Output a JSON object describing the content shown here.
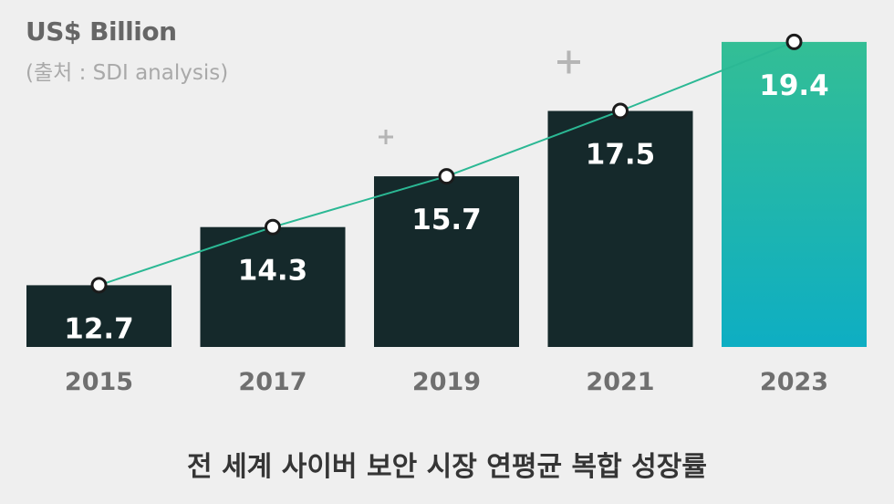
{
  "chart_data": {
    "type": "bar",
    "unit_label": "US$ Billion",
    "source": "(출처 : SDI analysis)",
    "caption": "전 세계 사이버 보안 시장 연평균 복합 성장률",
    "categories": [
      "2015",
      "2017",
      "2019",
      "2021",
      "2023"
    ],
    "values": [
      12.7,
      14.3,
      15.7,
      17.5,
      19.4
    ],
    "value_labels": [
      "12.7",
      "14.3",
      "15.7",
      "17.5",
      "19.4"
    ],
    "ylim": [
      11.0,
      19.9
    ],
    "overlay": "line-with-markers",
    "grid": false,
    "legend": "none",
    "colors": {
      "background": "#efefef",
      "bar": "#15292b",
      "highlight_top": "#33be95",
      "highlight_bottom": "#0eaec3",
      "line": "#2bb894",
      "marker_fill": "#ffffff",
      "marker_stroke": "#1b1b1b",
      "decor": "#b5b5b5"
    }
  }
}
